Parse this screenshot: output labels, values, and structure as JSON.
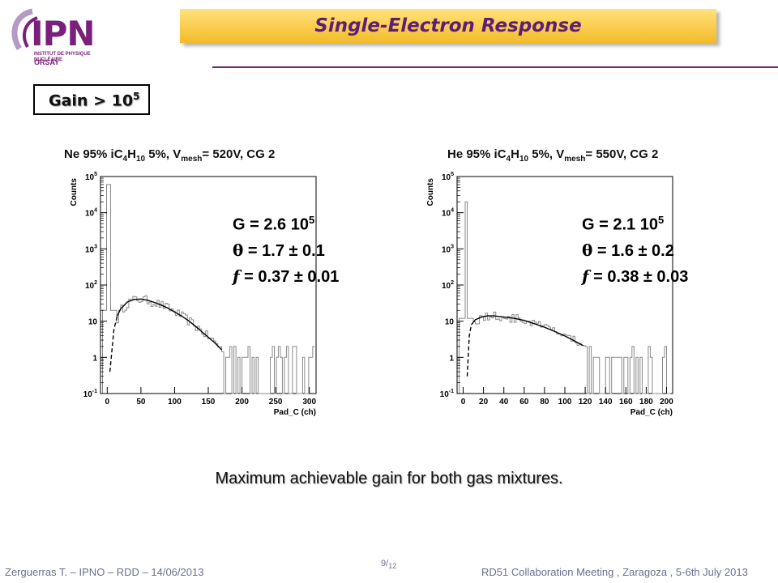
{
  "header": {
    "title": "Single-Electron Response",
    "logo_text": "IPN",
    "logo_subtitle": "INSTITUT DE PHYSIQUE NUCLÉAIRE",
    "logo_city": "ORSAY"
  },
  "gain_label": {
    "text": "Gain > 10",
    "sup": "5"
  },
  "left_plot": {
    "title": {
      "p1": "Ne 95% iC",
      "s1": "4",
      "p2": "H",
      "s2": "10",
      "p3": " 5%, V",
      "s3": "mesh",
      "p4": "= 520V, CG 2"
    },
    "params": {
      "g": "G = 2.6 10",
      "g_exp": "5",
      "theta_sym": "θ",
      "theta_val": " = 1.7 ± 0.1",
      "f_sym": "f",
      "f_val": " = 0.37 ± 0.01"
    }
  },
  "right_plot": {
    "title": {
      "p1": "He 95% iC",
      "s1": "4",
      "p2": "H",
      "s2": "10",
      "p3": " 5%, V",
      "s3": "mesh",
      "p4": "= 550V, CG 2"
    },
    "params": {
      "g": "G = 2.1 10",
      "g_exp": "5",
      "theta_sym": "θ",
      "theta_val": " = 1.6 ± 0.2",
      "f_sym": "f",
      "f_val": " = 0.38 ± 0.03"
    }
  },
  "chart_data": [
    {
      "type": "histogram",
      "xlabel": "Pad_C (ch)",
      "ylabel": "Counts",
      "xlim": [
        -10,
        310
      ],
      "ylim": [
        0.1,
        100000
      ],
      "yscale": "log",
      "x_ticks": [
        0,
        50,
        100,
        150,
        200,
        250,
        300
      ],
      "y_ticks": [
        {
          "v": 0.1,
          "base": "10",
          "exp": "-1"
        },
        {
          "v": 1,
          "base": "1",
          "exp": ""
        },
        {
          "v": 10,
          "base": "10",
          "exp": ""
        },
        {
          "v": 100,
          "base": "10",
          "exp": "2"
        },
        {
          "v": 1000,
          "base": "10",
          "exp": "3"
        },
        {
          "v": 10000,
          "base": "10",
          "exp": "4"
        },
        {
          "v": 100000,
          "base": "10",
          "exp": "5"
        }
      ],
      "spike": {
        "x": 0,
        "counts": 60000
      },
      "fit_points": [
        [
          4,
          0.4
        ],
        [
          10,
          6
        ],
        [
          15,
          14
        ],
        [
          20,
          22
        ],
        [
          30,
          34
        ],
        [
          40,
          40
        ],
        [
          50,
          41
        ],
        [
          60,
          38
        ],
        [
          70,
          33
        ],
        [
          80,
          28
        ],
        [
          90,
          23
        ],
        [
          100,
          18
        ],
        [
          110,
          14
        ],
        [
          120,
          10.5
        ],
        [
          130,
          7.5
        ],
        [
          140,
          5.2
        ],
        [
          150,
          3.6
        ],
        [
          160,
          2.5
        ],
        [
          170,
          1.6
        ]
      ]
    },
    {
      "type": "histogram",
      "xlabel": "Pad_C (ch)",
      "ylabel": "Counts",
      "xlim": [
        -6,
        206
      ],
      "ylim": [
        0.1,
        100000
      ],
      "yscale": "log",
      "x_ticks": [
        0,
        20,
        40,
        60,
        80,
        100,
        120,
        140,
        160,
        180,
        200
      ],
      "y_ticks": [
        {
          "v": 0.1,
          "base": "10",
          "exp": "-1"
        },
        {
          "v": 1,
          "base": "1",
          "exp": ""
        },
        {
          "v": 10,
          "base": "10",
          "exp": ""
        },
        {
          "v": 100,
          "base": "10",
          "exp": "2"
        },
        {
          "v": 1000,
          "base": "10",
          "exp": "3"
        },
        {
          "v": 10000,
          "base": "10",
          "exp": "4"
        },
        {
          "v": 100000,
          "base": "10",
          "exp": "5"
        }
      ],
      "spike": {
        "x": 2,
        "counts": 20000
      },
      "fit_points": [
        [
          4,
          0.3
        ],
        [
          6,
          4
        ],
        [
          8,
          8
        ],
        [
          12,
          11
        ],
        [
          18,
          13
        ],
        [
          24,
          14
        ],
        [
          30,
          14
        ],
        [
          40,
          13
        ],
        [
          50,
          12
        ],
        [
          60,
          10.5
        ],
        [
          70,
          8.5
        ],
        [
          80,
          6.8
        ],
        [
          90,
          5.2
        ],
        [
          100,
          3.9
        ],
        [
          110,
          2.8
        ],
        [
          118,
          2.1
        ]
      ]
    }
  ],
  "caption": "Maximum achievable gain for both gas mixtures.",
  "footer": {
    "left": "Zerguerras T. – IPNO – RDD – 14/06/2013",
    "page": "9",
    "total": "12",
    "right": "RD51 Collaboration Meeting , Zaragoza , 5-6th July 2013"
  }
}
